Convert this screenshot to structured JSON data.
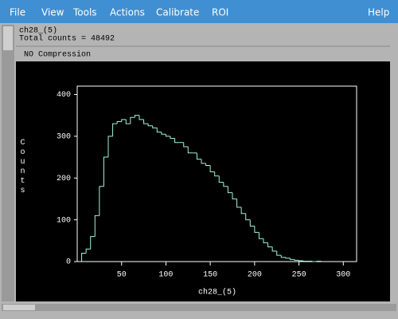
{
  "menu": {
    "items": [
      "File",
      "View",
      "Tools",
      "Actions",
      "Calibrate",
      "ROI"
    ],
    "help": "Help"
  },
  "info": {
    "name": "ch28_(5)",
    "total": "Total counts = 48492",
    "compression": "NO Compression"
  },
  "chart_data": {
    "type": "histogram",
    "xlabel": "ch28_(5)",
    "ylabel": "Counts",
    "color": "#9ff5d8",
    "bins": [
      5,
      10,
      15,
      20,
      25,
      30,
      35,
      40,
      45,
      50,
      55,
      60,
      65,
      70,
      75,
      80,
      85,
      90,
      95,
      100,
      105,
      110,
      115,
      120,
      125,
      130,
      135,
      140,
      145,
      150,
      155,
      160,
      165,
      170,
      175,
      180,
      185,
      190,
      195,
      200,
      205,
      210,
      215,
      220,
      225,
      230,
      235,
      240,
      245,
      250,
      255,
      260,
      265,
      270,
      275
    ],
    "values": [
      20,
      30,
      60,
      110,
      180,
      250,
      300,
      330,
      335,
      340,
      330,
      345,
      350,
      340,
      330,
      325,
      320,
      310,
      305,
      300,
      295,
      285,
      285,
      275,
      260,
      260,
      245,
      235,
      230,
      215,
      205,
      190,
      180,
      165,
      150,
      130,
      115,
      100,
      85,
      70,
      55,
      45,
      35,
      25,
      15,
      10,
      8,
      5,
      3,
      2,
      1,
      1,
      0,
      1
    ],
    "xlim": [
      0,
      315
    ],
    "ylim": [
      0,
      420
    ],
    "xticks": [
      50,
      100,
      150,
      200,
      250,
      300
    ],
    "yticks": [
      0,
      100,
      200,
      300,
      400
    ]
  }
}
